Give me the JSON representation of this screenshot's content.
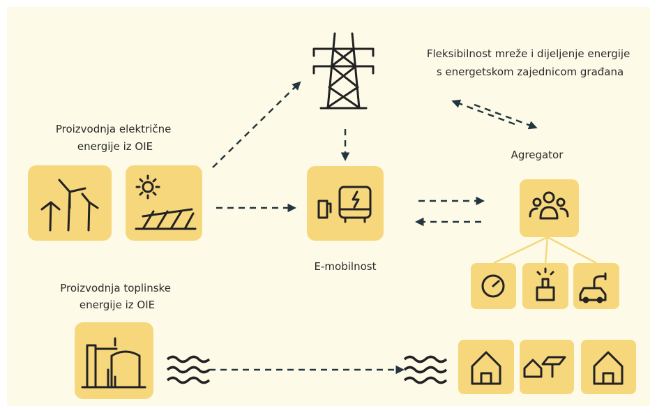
{
  "grid_label": {
    "lines": [
      "Fleksibilnost mreže i dijeljenje energije",
      "s energetskom zajednicom građana"
    ]
  },
  "electric_label": {
    "lines": [
      "Proizvodnja električne",
      "energije iz OIE"
    ]
  },
  "aggregator_label": "Agregator",
  "emobility_label": "E-mobilnost",
  "thermal_label": {
    "lines": [
      "Proizvodnja toplinske",
      "energije iz OIE"
    ]
  }
}
